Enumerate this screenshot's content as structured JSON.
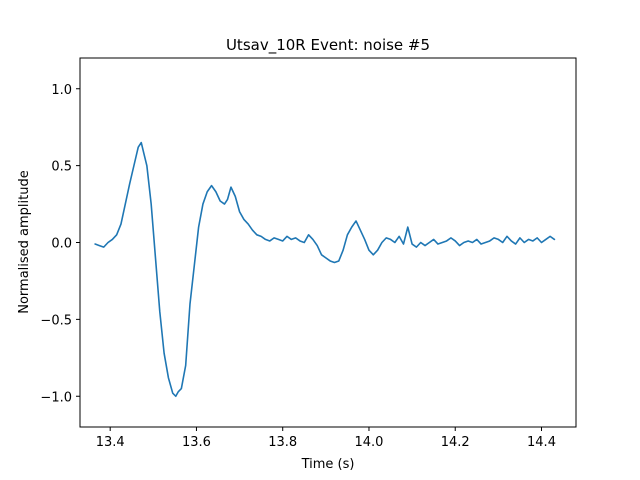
{
  "chart_data": {
    "type": "line",
    "title": "Utsav_10R Event: noise #5",
    "xlabel": "Time (s)",
    "ylabel": "Normalised amplitude",
    "xlim": [
      13.33,
      14.48
    ],
    "ylim": [
      -1.2,
      1.2
    ],
    "xticks": [
      13.4,
      13.6,
      13.8,
      14.0,
      14.2,
      14.4
    ],
    "xtick_labels": [
      "13.4",
      "13.6",
      "13.8",
      "14.0",
      "14.2",
      "14.4"
    ],
    "yticks": [
      -1.0,
      -0.5,
      0.0,
      0.5,
      1.0
    ],
    "ytick_labels": [
      "−1.0",
      "−0.5",
      "0.0",
      "0.5",
      "1.0"
    ],
    "grid": false,
    "legend": "none",
    "series": [
      {
        "color": "#1f77b4",
        "x": [
          13.365,
          13.375,
          13.385,
          13.395,
          13.405,
          13.415,
          13.425,
          13.435,
          13.445,
          13.455,
          13.465,
          13.472,
          13.478,
          13.485,
          13.495,
          13.505,
          13.515,
          13.525,
          13.535,
          13.545,
          13.552,
          13.558,
          13.565,
          13.575,
          13.585,
          13.595,
          13.605,
          13.615,
          13.625,
          13.635,
          13.645,
          13.655,
          13.665,
          13.672,
          13.68,
          13.69,
          13.7,
          13.71,
          13.72,
          13.73,
          13.74,
          13.75,
          13.76,
          13.77,
          13.78,
          13.79,
          13.8,
          13.81,
          13.82,
          13.83,
          13.84,
          13.85,
          13.86,
          13.87,
          13.88,
          13.89,
          13.9,
          13.91,
          13.92,
          13.93,
          13.94,
          13.95,
          13.96,
          13.97,
          13.98,
          13.99,
          14.0,
          14.01,
          14.02,
          14.03,
          14.04,
          14.05,
          14.06,
          14.07,
          14.08,
          14.09,
          14.1,
          14.11,
          14.12,
          14.13,
          14.14,
          14.15,
          14.16,
          14.17,
          14.18,
          14.19,
          14.2,
          14.21,
          14.22,
          14.23,
          14.24,
          14.25,
          14.26,
          14.27,
          14.28,
          14.29,
          14.3,
          14.31,
          14.32,
          14.33,
          14.34,
          14.35,
          14.36,
          14.37,
          14.38,
          14.39,
          14.4,
          14.41,
          14.42,
          14.43
        ],
        "y": [
          -0.01,
          -0.02,
          -0.03,
          0.0,
          0.02,
          0.05,
          0.12,
          0.25,
          0.38,
          0.5,
          0.62,
          0.65,
          0.58,
          0.5,
          0.25,
          -0.1,
          -0.45,
          -0.72,
          -0.88,
          -0.98,
          -1.0,
          -0.97,
          -0.95,
          -0.8,
          -0.4,
          -0.15,
          0.1,
          0.25,
          0.33,
          0.37,
          0.33,
          0.27,
          0.25,
          0.28,
          0.36,
          0.3,
          0.2,
          0.15,
          0.12,
          0.08,
          0.05,
          0.04,
          0.02,
          0.01,
          0.03,
          0.02,
          0.01,
          0.04,
          0.02,
          0.03,
          0.01,
          0.0,
          0.05,
          0.02,
          -0.02,
          -0.08,
          -0.1,
          -0.12,
          -0.13,
          -0.12,
          -0.05,
          0.05,
          0.1,
          0.14,
          0.08,
          0.02,
          -0.05,
          -0.08,
          -0.05,
          0.0,
          0.03,
          0.02,
          0.0,
          0.04,
          -0.01,
          0.1,
          -0.01,
          -0.03,
          0.0,
          -0.02,
          0.0,
          0.02,
          -0.01,
          0.0,
          0.01,
          0.03,
          0.01,
          -0.02,
          0.0,
          0.01,
          0.0,
          0.02,
          -0.01,
          0.0,
          0.01,
          0.03,
          0.02,
          0.0,
          0.04,
          0.01,
          -0.01,
          0.03,
          0.0,
          0.02,
          0.01,
          0.03,
          0.0,
          0.02,
          0.04,
          0.02
        ]
      }
    ]
  }
}
